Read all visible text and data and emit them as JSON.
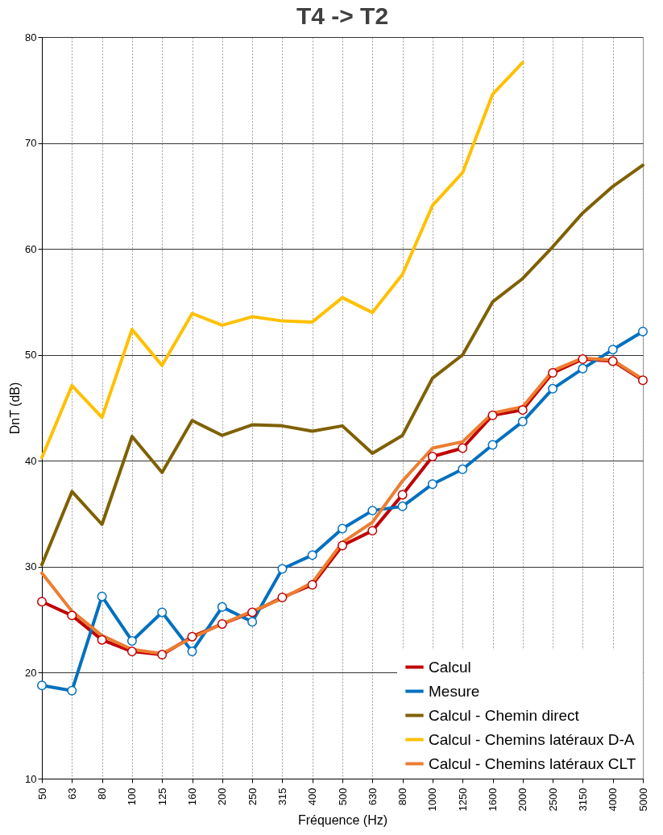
{
  "chart_data": {
    "type": "line",
    "title": "T4 -> T2",
    "xlabel": "Fréquence (Hz)",
    "ylabel": "DnT (dB)",
    "categories": [
      "50",
      "63",
      "80",
      "100",
      "125",
      "160",
      "200",
      "250",
      "315",
      "400",
      "500",
      "630",
      "800",
      "1000",
      "1250",
      "1600",
      "2000",
      "2500",
      "3150",
      "4000",
      "5000"
    ],
    "ylim": [
      10,
      80
    ],
    "yticks": [
      10,
      20,
      30,
      40,
      50,
      60,
      70,
      80
    ],
    "grid": true,
    "legend": "bottom right",
    "line_style": "solid",
    "series": [
      {
        "name": "Calcul",
        "color": "#c00000",
        "marker": "circle",
        "values": [
          26.7,
          25.4,
          23.1,
          22.0,
          21.7,
          23.4,
          24.6,
          25.7,
          27.1,
          28.3,
          32.0,
          33.4,
          36.8,
          40.4,
          41.2,
          44.3,
          44.8,
          48.3,
          49.6,
          49.4,
          47.6
        ]
      },
      {
        "name": "Mesure",
        "color": "#0070c0",
        "marker": "circle",
        "values": [
          18.8,
          18.3,
          27.2,
          23.0,
          25.7,
          22.0,
          26.2,
          24.8,
          29.8,
          31.1,
          33.6,
          35.3,
          35.7,
          37.8,
          39.2,
          41.5,
          43.7,
          46.8,
          48.7,
          50.5,
          52.2
        ]
      },
      {
        "name": "Calcul - Chemin direct",
        "color": "#7f6000",
        "values": [
          30.2,
          37.1,
          34.0,
          42.3,
          38.9,
          43.8,
          42.4,
          43.4,
          43.3,
          42.8,
          43.3,
          40.7,
          42.4,
          47.8,
          50.0,
          55.0,
          57.2,
          60.2,
          63.4,
          65.9,
          67.9
        ]
      },
      {
        "name": "Calcul - Chemins latéraux D-A",
        "color": "#ffc000",
        "values": [
          40.3,
          47.1,
          44.1,
          52.4,
          49.0,
          53.9,
          52.8,
          53.6,
          53.2,
          53.1,
          55.4,
          54.0,
          57.6,
          64.1,
          67.2,
          74.6,
          77.6,
          null,
          null,
          null,
          null
        ]
      },
      {
        "name": "Calcul - Chemins latéraux CLT",
        "color": "#ed7d31",
        "values": [
          29.4,
          25.8,
          23.5,
          22.2,
          21.8,
          23.3,
          24.6,
          25.8,
          27.0,
          28.5,
          32.3,
          34.2,
          38.1,
          41.2,
          41.8,
          44.5,
          45.1,
          48.5,
          49.7,
          49.5,
          47.7
        ]
      }
    ]
  }
}
